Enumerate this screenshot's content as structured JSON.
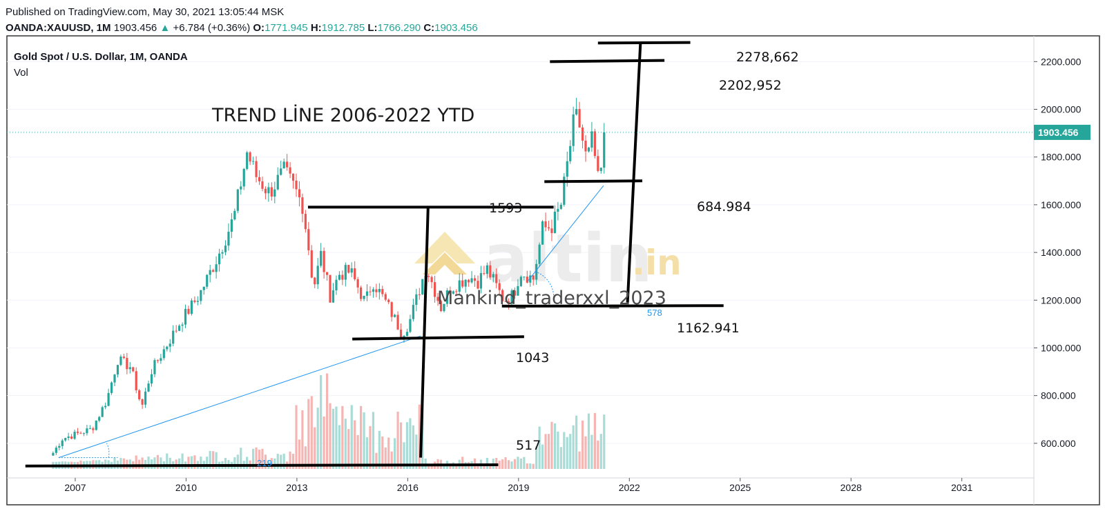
{
  "header": {
    "published": "Published on TradingView.com, May 30, 2021 13:05:44 MSK",
    "symbol": "OANDA:XAUUSD, 1M",
    "last": "1903.456",
    "arrow": "▲",
    "change": "+6.784 (+0.36%)",
    "o_label": "O:",
    "o_val": "1771.945",
    "h_label": "H:",
    "h_val": "1912.785",
    "l_label": "L:",
    "l_val": "1766.290",
    "c_label": "C:",
    "c_val": "1903.456"
  },
  "chart_data": {
    "type": "candlestick",
    "title": "Gold Spot / U.S. Dollar, 1M, OANDA",
    "volume_label": "Vol",
    "ylim": [
      455,
      2305
    ],
    "xlim": [
      2005.2,
      2033.0
    ],
    "y_ticks": [
      "600.000",
      "800.000",
      "1000.000",
      "1200.000",
      "1400.000",
      "1600.000",
      "1800.000",
      "2000.000",
      "2200.000"
    ],
    "x_ticks": [
      "2007",
      "2010",
      "2013",
      "2016",
      "2019",
      "2022",
      "2025",
      "2028",
      "2031"
    ],
    "last_price": "1903.456",
    "up_color": "#26a69a",
    "down_color": "#ef5350",
    "anchors": [
      [
        2006.45,
        560
      ],
      [
        2006.7,
        620
      ],
      [
        2007.5,
        660
      ],
      [
        2007.9,
        780
      ],
      [
        2008.2,
        950
      ],
      [
        2008.55,
        920
      ],
      [
        2008.85,
        750
      ],
      [
        2009.1,
        900
      ],
      [
        2009.9,
        1110
      ],
      [
        2010.4,
        1220
      ],
      [
        2010.9,
        1380
      ],
      [
        2011.35,
        1550
      ],
      [
        2011.7,
        1820
      ],
      [
        2011.95,
        1720
      ],
      [
        2012.3,
        1650
      ],
      [
        2012.7,
        1740
      ],
      [
        2012.95,
        1680
      ],
      [
        2013.2,
        1600
      ],
      [
        2013.35,
        1440
      ],
      [
        2013.5,
        1250
      ],
      [
        2013.7,
        1390
      ],
      [
        2013.95,
        1220
      ],
      [
        2014.2,
        1310
      ],
      [
        2014.5,
        1320
      ],
      [
        2014.9,
        1190
      ],
      [
        2015.1,
        1280
      ],
      [
        2015.5,
        1180
      ],
      [
        2015.9,
        1060
      ],
      [
        2016.1,
        1110
      ],
      [
        2016.55,
        1340
      ],
      [
        2016.95,
        1170
      ],
      [
        2017.2,
        1250
      ],
      [
        2017.7,
        1300
      ],
      [
        2017.95,
        1280
      ],
      [
        2018.2,
        1330
      ],
      [
        2018.65,
        1200
      ],
      [
        2018.9,
        1220
      ],
      [
        2019.1,
        1320
      ],
      [
        2019.45,
        1290
      ],
      [
        2019.7,
        1500
      ],
      [
        2019.95,
        1510
      ],
      [
        2020.2,
        1600
      ],
      [
        2020.55,
        1950
      ],
      [
        2020.65,
        1970
      ],
      [
        2020.9,
        1780
      ],
      [
        2021.05,
        1880
      ],
      [
        2021.2,
        1700
      ],
      [
        2021.33,
        1768
      ],
      [
        2021.4,
        1903
      ]
    ],
    "annotations": {
      "heading": "TREND LİNE 2006-2022 YTD",
      "levels": [
        "2278,662",
        "2202,952",
        "1593",
        "684.984",
        "1162.941",
        "1043",
        "517"
      ],
      "watermark_brand": "altin",
      "watermark_suffix": ".in",
      "author": "Mankind_traderxxl_2023",
      "angle_small": "219",
      "angle_large": "578"
    }
  }
}
